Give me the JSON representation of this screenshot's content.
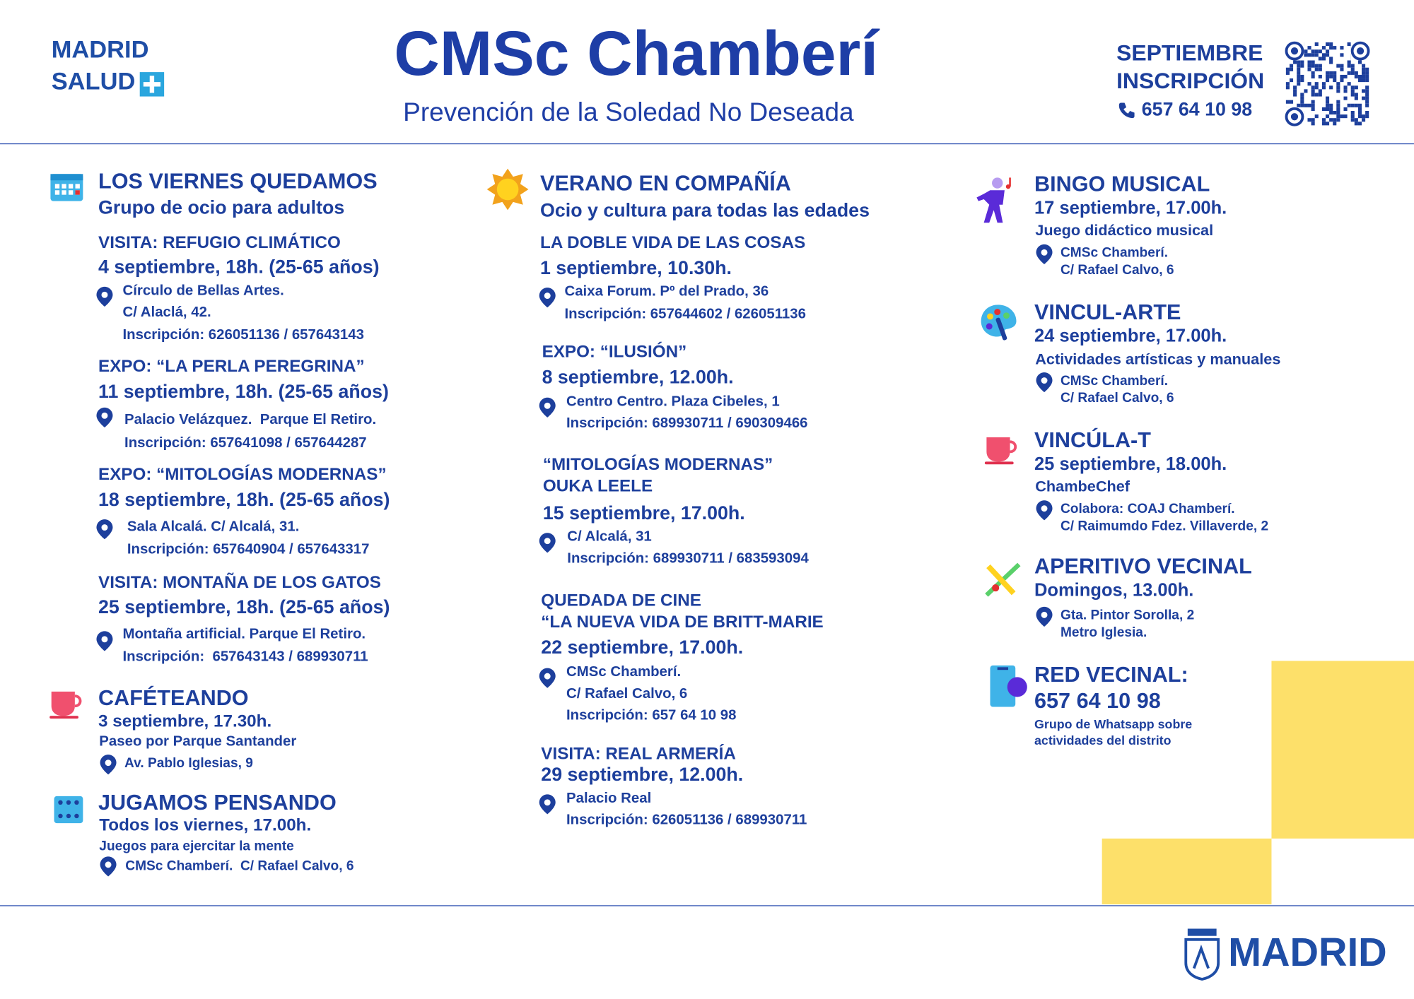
{
  "header": {
    "brand_top": "MADRID",
    "brand_bottom": "SALUD",
    "title": "CMSc Chamberí",
    "subtitle": "Prevención de la Soledad No Deseada",
    "month": "SEPTIEMBRE",
    "signup": "INSCRIPCIÓN",
    "phone": "657 64 10 98"
  },
  "left": [
    {
      "title": "LOS VIERNES QUEDAMOS",
      "subtitle": "Grupo de ocio para adultos",
      "events": [
        {
          "name": "VISITA: REFUGIO CLIMÁTICO",
          "date": "4 septiembre, 18h. (25-65 años)",
          "place": [
            "Círculo de Bellas Artes.",
            "C/ Alaclá, 42.",
            "Inscripción: 626051136 / 657643143"
          ]
        },
        {
          "name": "EXPO: “LA PERLA PEREGRINA”",
          "date": "11 septiembre, 18h. (25-65 años)",
          "place": [
            "Palacio Velázquez.  Parque El Retiro.",
            "Inscripción: 657641098 / 657644287"
          ]
        },
        {
          "name": "EXPO: “MITOLOGÍAS MODERNAS”",
          "date": "18 septiembre, 18h. (25-65 años)",
          "place": [
            "Sala Alcalá. C/ Alcalá, 31.",
            "Inscripción: 657640904 / 657643317"
          ]
        },
        {
          "name": "VISITA: MONTAÑA DE LOS GATOS",
          "date": "25 septiembre, 18h. (25-65 años)",
          "place": [
            "Montaña artificial. Parque El Retiro.",
            "Inscripción:  657643143 / 689930711"
          ]
        }
      ]
    },
    {
      "title": "CAFÉTEANDO",
      "date": "3 septiembre, 17.30h.",
      "note": "Paseo por Parque Santander",
      "place": [
        "Av. Pablo Iglesias, 9"
      ]
    },
    {
      "title": "JUGAMOS PENSANDO",
      "date": "Todos los viernes, 17.00h.",
      "note": "Juegos para ejercitar la mente",
      "place": [
        "CMSc Chamberí.  C/ Rafael Calvo, 6"
      ]
    }
  ],
  "middle": {
    "title": "VERANO EN COMPAÑÍA",
    "subtitle": "Ocio y cultura para todas las edades",
    "events": [
      {
        "name": [
          "LA DOBLE VIDA DE LAS COSAS"
        ],
        "date": "1 septiembre, 10.30h.",
        "place": [
          "Caixa Forum. Pº del Prado, 36",
          "Inscripción: 657644602 / 626051136"
        ]
      },
      {
        "name": [
          "EXPO: “ILUSIÓN”"
        ],
        "date": "8 septiembre, 12.00h.",
        "place": [
          "Centro Centro. Plaza Cibeles, 1",
          "Inscripción: 689930711 / 690309466"
        ]
      },
      {
        "name": [
          "“MITOLOGÍAS MODERNAS”",
          "OUKA LEELE"
        ],
        "date": "15 septiembre, 17.00h.",
        "place": [
          "C/ Alcalá, 31",
          "Inscripción: 689930711 / 683593094"
        ]
      },
      {
        "name": [
          "QUEDADA DE CINE",
          "“LA NUEVA VIDA DE BRITT-MARIE"
        ],
        "date": "22 septiembre, 17.00h.",
        "place": [
          "CMSc Chamberí.",
          "C/ Rafael Calvo, 6",
          "Inscripción: 657 64 10 98"
        ]
      },
      {
        "name": [
          "VISITA: REAL ARMERÍA"
        ],
        "date": "29 septiembre, 12.00h.",
        "place": [
          "Palacio Real",
          "Inscripción: 626051136 / 689930711"
        ]
      }
    ]
  },
  "right": [
    {
      "title": "BINGO MUSICAL",
      "date": "17 septiembre, 17.00h.",
      "note": "Juego didáctico musical",
      "place": [
        "CMSc Chamberí.",
        "C/ Rafael Calvo, 6"
      ]
    },
    {
      "title": "VINCUL-ARTE",
      "date": "24 septiembre, 17.00h.",
      "note": "Actividades artísticas y manuales",
      "place": [
        "CMSc Chamberí.",
        "C/ Rafael Calvo, 6"
      ]
    },
    {
      "title": "VINCÚLA-T",
      "date": "25 septiembre, 18.00h.",
      "note": "ChambeChef",
      "place": [
        "Colabora: COAJ Chamberí.",
        "C/ Raimumdo Fdez. Villaverde, 2"
      ]
    },
    {
      "title": "APERITIVO VECINAL",
      "date": "Domingos, 13.00h.",
      "place": [
        "Gta. Pintor Sorolla, 2",
        "Metro Iglesia."
      ]
    },
    {
      "title": "RED VECINAL:",
      "date": "657 64 10 98",
      "note": [
        "Grupo de Whatsapp sobre",
        "actividades del distrito"
      ]
    }
  ],
  "footer": {
    "logo": "MADRID"
  }
}
